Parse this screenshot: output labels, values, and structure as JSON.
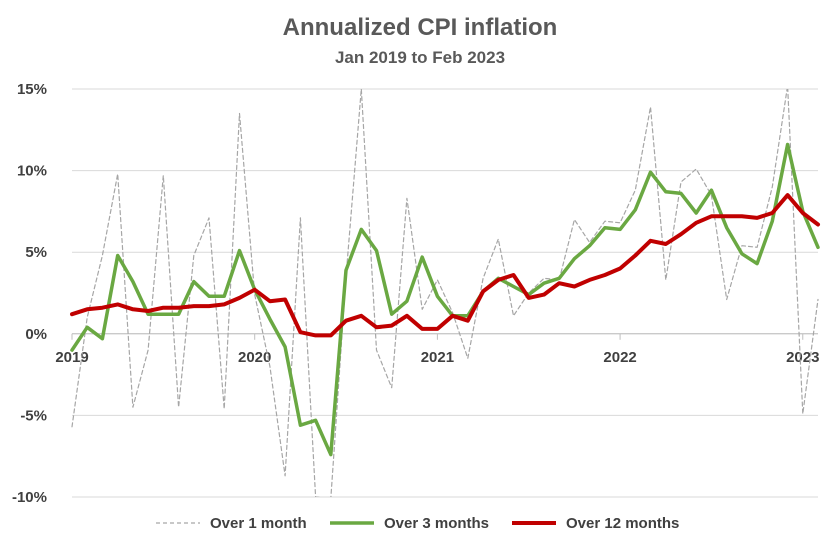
{
  "chart_data": {
    "type": "line",
    "title": "Annualized CPI inflation",
    "subtitle": "Jan 2019 to Feb 2023",
    "xlabel": "",
    "ylabel": "",
    "ylim": [
      -10,
      15
    ],
    "y_ticks": [
      {
        "value": 15,
        "label": "15%"
      },
      {
        "value": 10,
        "label": "10%"
      },
      {
        "value": 5,
        "label": "5%"
      },
      {
        "value": 0,
        "label": "0%"
      },
      {
        "value": -5,
        "label": "-5%"
      },
      {
        "value": -10,
        "label": "-10%"
      }
    ],
    "x_ticks": [
      {
        "month_index": 0,
        "label": "2019"
      },
      {
        "month_index": 12,
        "label": "2020"
      },
      {
        "month_index": 24,
        "label": "2021"
      },
      {
        "month_index": 36,
        "label": "2022"
      },
      {
        "month_index": 48,
        "label": "2023"
      }
    ],
    "x": [
      "Jan 2019",
      "Feb 2019",
      "Mar 2019",
      "Apr 2019",
      "May 2019",
      "Jun 2019",
      "Jul 2019",
      "Aug 2019",
      "Sep 2019",
      "Oct 2019",
      "Nov 2019",
      "Dec 2019",
      "Jan 2020",
      "Feb 2020",
      "Mar 2020",
      "Apr 2020",
      "May 2020",
      "Jun 2020",
      "Jul 2020",
      "Aug 2020",
      "Sep 2020",
      "Oct 2020",
      "Nov 2020",
      "Dec 2020",
      "Jan 2021",
      "Feb 2021",
      "Mar 2021",
      "Apr 2021",
      "May 2021",
      "Jun 2021",
      "Jul 2021",
      "Aug 2021",
      "Sep 2021",
      "Oct 2021",
      "Nov 2021",
      "Dec 2021",
      "Jan 2022",
      "Feb 2022",
      "Mar 2022",
      "Apr 2022",
      "May 2022",
      "Jun 2022",
      "Jul 2022",
      "Aug 2022",
      "Sep 2022",
      "Oct 2022",
      "Nov 2022",
      "Dec 2022",
      "Jan 2023",
      "Feb 2023"
    ],
    "horizontal_grid": true,
    "legend_position": "bottom",
    "series": [
      {
        "name": "Over 1 month",
        "color": "#a6a6a6",
        "style": "dashed",
        "values": [
          -5.7,
          1.0,
          4.8,
          9.8,
          -4.5,
          -1.0,
          9.7,
          -4.5,
          4.8,
          7.1,
          -4.6,
          13.5,
          2.4,
          -2.0,
          -8.7,
          7.1,
          -10.0,
          -10.1,
          3.5,
          15.0,
          -1.0,
          -3.3,
          8.3,
          1.5,
          3.3,
          1.3,
          -1.5,
          3.4,
          5.8,
          1.1,
          2.5,
          3.4,
          3.3,
          7.0,
          5.6,
          6.9,
          6.8,
          8.8,
          13.9,
          3.3,
          9.3,
          10.1,
          8.5,
          2.1,
          5.4,
          5.3,
          9.0,
          15.2,
          -4.9,
          2.1
        ]
      },
      {
        "name": "Over 3 months",
        "color": "#6aa842",
        "style": "solid",
        "values": [
          -1.0,
          0.4,
          -0.3,
          4.8,
          3.2,
          1.2,
          1.2,
          1.2,
          3.2,
          2.3,
          2.3,
          5.1,
          2.7,
          0.9,
          -0.8,
          -5.6,
          -5.3,
          -7.4,
          3.9,
          6.4,
          5.1,
          1.2,
          2.0,
          4.7,
          2.3,
          1.1,
          1.1,
          2.6,
          3.4,
          2.9,
          2.4,
          3.1,
          3.4,
          4.6,
          5.4,
          6.5,
          6.4,
          7.6,
          9.9,
          8.7,
          8.6,
          7.4,
          8.8,
          6.5,
          4.9,
          4.3,
          6.9,
          11.6,
          7.5,
          5.3
        ]
      },
      {
        "name": "Over 12 months",
        "color": "#c00000",
        "style": "solid",
        "values": [
          1.2,
          1.5,
          1.6,
          1.8,
          1.5,
          1.4,
          1.6,
          1.6,
          1.7,
          1.7,
          1.8,
          2.2,
          2.7,
          2.0,
          2.1,
          0.1,
          -0.1,
          -0.1,
          0.8,
          1.1,
          0.4,
          0.5,
          1.1,
          0.3,
          0.3,
          1.1,
          0.8,
          2.6,
          3.3,
          3.6,
          2.2,
          2.4,
          3.1,
          2.9,
          3.3,
          3.6,
          4.0,
          4.8,
          5.7,
          5.5,
          6.1,
          6.8,
          7.2,
          7.2,
          7.2,
          7.1,
          7.4,
          8.5,
          7.4,
          6.7
        ]
      }
    ]
  }
}
